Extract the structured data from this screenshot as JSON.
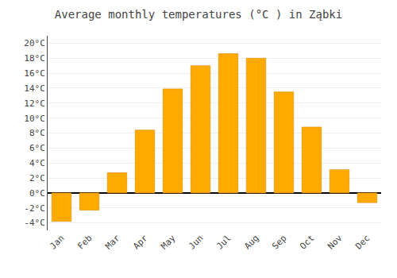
{
  "chart_data": {
    "type": "bar",
    "title": "Average monthly temperatures (°C ) in Ząbki",
    "categories": [
      "Jan",
      "Feb",
      "Mar",
      "Apr",
      "May",
      "Jun",
      "Jul",
      "Aug",
      "Sep",
      "Oct",
      "Nov",
      "Dec"
    ],
    "values": [
      -3.8,
      -2.3,
      2.7,
      8.4,
      13.9,
      17.0,
      18.6,
      18.0,
      13.5,
      8.8,
      3.1,
      -1.3
    ],
    "color": "#FFAA00",
    "ylim": [
      -5,
      21
    ],
    "yticks": [
      {
        "value": -4,
        "label": "-4°C"
      },
      {
        "value": -2,
        "label": "-2°C"
      },
      {
        "value": 0,
        "label": "0°C"
      },
      {
        "value": 2,
        "label": "2°C"
      },
      {
        "value": 4,
        "label": "4°C"
      },
      {
        "value": 6,
        "label": "6°C"
      },
      {
        "value": 8,
        "label": "8°C"
      },
      {
        "value": 10,
        "label": "10°C"
      },
      {
        "value": 12,
        "label": "12°C"
      },
      {
        "value": 14,
        "label": "14°C"
      },
      {
        "value": 16,
        "label": "16°C"
      },
      {
        "value": 18,
        "label": "18°C"
      },
      {
        "value": 20,
        "label": "20°C"
      }
    ],
    "grid": true
  }
}
